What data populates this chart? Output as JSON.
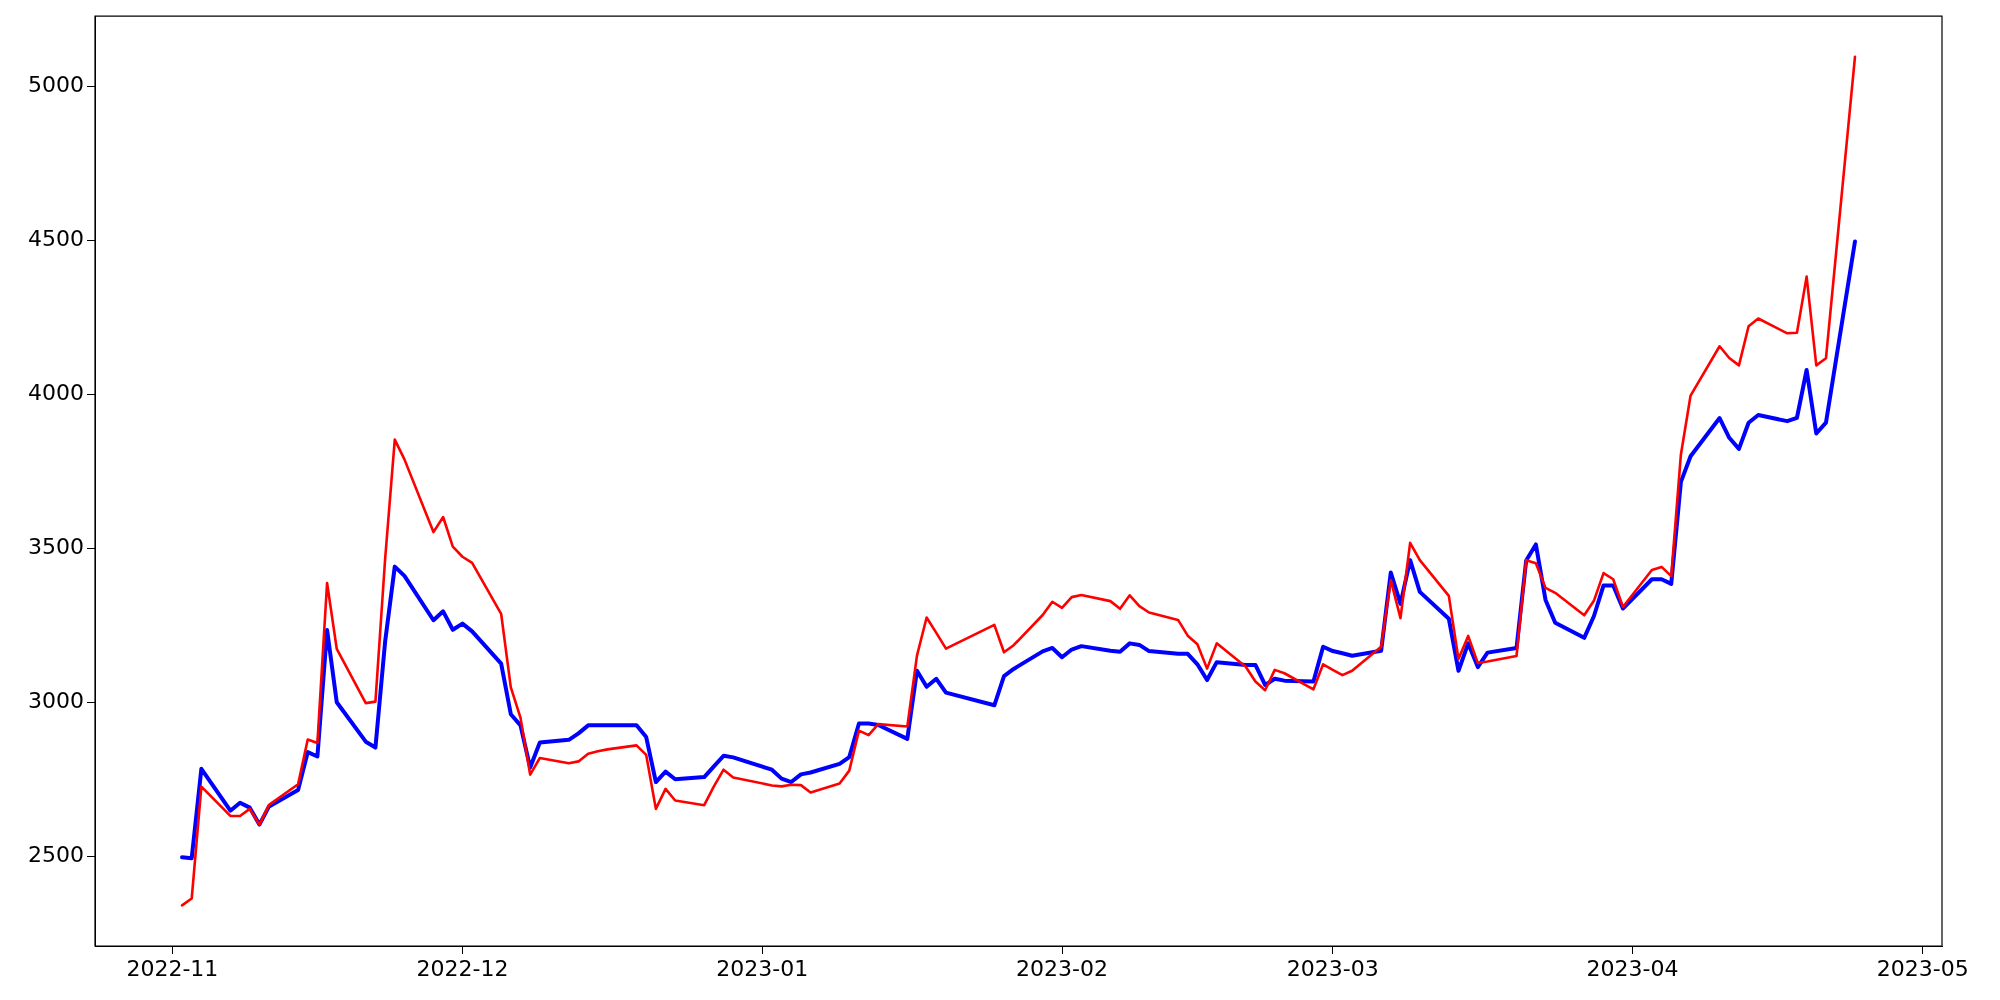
{
  "chart_data": {
    "type": "line",
    "x": [
      "2022-11-02",
      "2022-11-03",
      "2022-11-04",
      "2022-11-07",
      "2022-11-08",
      "2022-11-09",
      "2022-11-10",
      "2022-11-11",
      "2022-11-14",
      "2022-11-15",
      "2022-11-16",
      "2022-11-17",
      "2022-11-18",
      "2022-11-21",
      "2022-11-22",
      "2022-11-23",
      "2022-11-24",
      "2022-11-25",
      "2022-11-28",
      "2022-11-29",
      "2022-11-30",
      "2022-12-01",
      "2022-12-02",
      "2022-12-05",
      "2022-12-06",
      "2022-12-07",
      "2022-12-08",
      "2022-12-09",
      "2022-12-12",
      "2022-12-13",
      "2022-12-14",
      "2022-12-15",
      "2022-12-16",
      "2022-12-19",
      "2022-12-20",
      "2022-12-21",
      "2022-12-22",
      "2022-12-23",
      "2022-12-26",
      "2022-12-27",
      "2022-12-28",
      "2022-12-29",
      "2023-01-02",
      "2023-01-03",
      "2023-01-04",
      "2023-01-05",
      "2023-01-06",
      "2023-01-09",
      "2023-01-10",
      "2023-01-11",
      "2023-01-12",
      "2023-01-13",
      "2023-01-16",
      "2023-01-17",
      "2023-01-18",
      "2023-01-19",
      "2023-01-20",
      "2023-01-25",
      "2023-01-26",
      "2023-01-27",
      "2023-01-30",
      "2023-01-31",
      "2023-02-01",
      "2023-02-02",
      "2023-02-03",
      "2023-02-06",
      "2023-02-07",
      "2023-02-08",
      "2023-02-09",
      "2023-02-10",
      "2023-02-13",
      "2023-02-14",
      "2023-02-15",
      "2023-02-16",
      "2023-02-17",
      "2023-02-20",
      "2023-02-21",
      "2023-02-22",
      "2023-02-23",
      "2023-02-24",
      "2023-02-27",
      "2023-02-28",
      "2023-03-01",
      "2023-03-02",
      "2023-03-03",
      "2023-03-06",
      "2023-03-07",
      "2023-03-08",
      "2023-03-09",
      "2023-03-10",
      "2023-03-13",
      "2023-03-14",
      "2023-03-15",
      "2023-03-16",
      "2023-03-17",
      "2023-03-20",
      "2023-03-21",
      "2023-03-22",
      "2023-03-23",
      "2023-03-24",
      "2023-03-27",
      "2023-03-28",
      "2023-03-29",
      "2023-03-30",
      "2023-03-31",
      "2023-04-03",
      "2023-04-04",
      "2023-04-05",
      "2023-04-06",
      "2023-04-07",
      "2023-04-10",
      "2023-04-11",
      "2023-04-12",
      "2023-04-13",
      "2023-04-14",
      "2023-04-17",
      "2023-04-18",
      "2023-04-19",
      "2023-04-20",
      "2023-04-21",
      "2023-04-24"
    ],
    "series": [
      {
        "color": "#ff0000",
        "values": [
          2342,
          2364,
          2727,
          2632,
          2632,
          2655,
          2604,
          2668,
          2735,
          2880,
          2869,
          3388,
          3174,
          2998,
          3003,
          3465,
          3853,
          3789,
          3553,
          3602,
          3506,
          3473,
          3453,
          3288,
          3049,
          2951,
          2766,
          2820,
          2803,
          2809,
          2834,
          2842,
          2848,
          2861,
          2830,
          2655,
          2720,
          2682,
          2667,
          2728,
          2782,
          2757,
          2731,
          2728,
          2733,
          2732,
          2708,
          2737,
          2779,
          2909,
          2894,
          2930,
          2922,
          3152,
          3276,
          3226,
          3175,
          3252,
          3163,
          3186,
          3284,
          3327,
          3307,
          3342,
          3349,
          3329,
          3304,
          3348,
          3313,
          3292,
          3268,
          3217,
          3189,
          3110,
          3192,
          3116,
          3068,
          3040,
          3106,
          3095,
          3043,
          3124,
          3106,
          3089,
          3103,
          3181,
          3397,
          3274,
          3518,
          3462,
          3346,
          3141,
          3216,
          3128,
          3133,
          3151,
          3462,
          3452,
          3372,
          3356,
          3283,
          3330,
          3420,
          3400,
          3310,
          3430,
          3440,
          3410,
          3805,
          3996,
          4156,
          4118,
          4094,
          4221,
          4246,
          4198,
          4200,
          4382,
          4094,
          4117,
          5095
        ]
      },
      {
        "color": "#0000ff",
        "values": [
          2498,
          2495,
          2785,
          2649,
          2675,
          2659,
          2604,
          2663,
          2716,
          2839,
          2825,
          3235,
          3001,
          2873,
          2854,
          3197,
          3441,
          3411,
          3267,
          3296,
          3236,
          3256,
          3231,
          3126,
          2962,
          2926,
          2789,
          2870,
          2879,
          2900,
          2926,
          2926,
          2926,
          2926,
          2888,
          2742,
          2776,
          2751,
          2758,
          2793,
          2827,
          2822,
          2782,
          2753,
          2742,
          2767,
          2773,
          2801,
          2823,
          2932,
          2932,
          2927,
          2882,
          3103,
          3051,
          3077,
          3032,
          2991,
          3086,
          3109,
          3166,
          3177,
          3147,
          3172,
          3183,
          3168,
          3165,
          3192,
          3187,
          3167,
          3158,
          3158,
          3124,
          3073,
          3131,
          3122,
          3122,
          3057,
          3077,
          3071,
          3068,
          3181,
          3167,
          3160,
          3152,
          3168,
          3422,
          3320,
          3462,
          3359,
          3272,
          3103,
          3192,
          3115,
          3162,
          3177,
          3461,
          3513,
          3333,
          3259,
          3210,
          3280,
          3380,
          3380,
          3305,
          3400,
          3400,
          3385,
          3716,
          3799,
          3923,
          3859,
          3823,
          3908,
          3933,
          3913,
          3924,
          4079,
          3873,
          3908,
          4496
        ]
      }
    ],
    "xlim": [
      "2022-10-24",
      "2023-05-03"
    ],
    "xticks": [
      "2022-11",
      "2022-12",
      "2023-01",
      "2023-02",
      "2023-03",
      "2023-04",
      "2023-05"
    ],
    "ylim": [
      2210,
      5227
    ],
    "yticks": [
      2500,
      3000,
      3500,
      4000,
      4500,
      5000
    ],
    "grid": false,
    "legend": false,
    "marker": "none",
    "line_style": "solid"
  }
}
